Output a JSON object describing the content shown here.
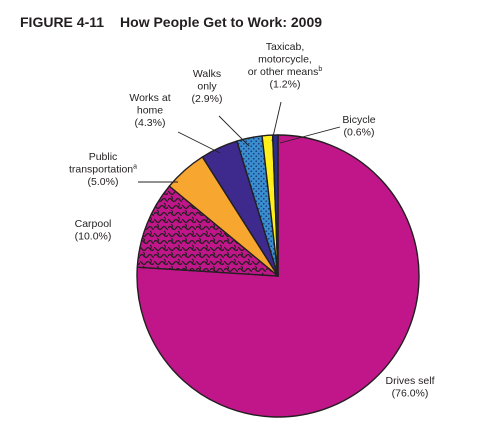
{
  "figure": {
    "number": "FIGURE 4-11",
    "title": "How People Get to Work: 2009"
  },
  "chart_data": {
    "type": "pie",
    "title": "How People Get to Work: 2009",
    "start": "12 o'clock",
    "direction": "clockwise",
    "slices": [
      {
        "name": "Drives self",
        "value": 76.0,
        "display": "(76.0%)",
        "color": "#c0168a",
        "pattern": "solid",
        "lines": [
          "Drives self"
        ],
        "sup": ""
      },
      {
        "name": "Carpool",
        "value": 10.0,
        "display": "(10.0%)",
        "color": "#c0168a",
        "pattern": "squiggle",
        "lines": [
          "Carpool"
        ],
        "sup": ""
      },
      {
        "name": "Public transportation",
        "value": 5.0,
        "display": "(5.0%)",
        "color": "#f7a630",
        "pattern": "solid",
        "lines": [
          "Public",
          "transportation"
        ],
        "sup": "a"
      },
      {
        "name": "Works at home",
        "value": 4.3,
        "display": "(4.3%)",
        "color": "#3d2a8c",
        "pattern": "solid",
        "lines": [
          "Works at",
          "home"
        ],
        "sup": ""
      },
      {
        "name": "Walks only",
        "value": 2.9,
        "display": "(2.9%)",
        "color": "#3a8fd1",
        "pattern": "dots",
        "lines": [
          "Walks",
          "only"
        ],
        "sup": ""
      },
      {
        "name": "Taxicab, motorcycle, or other means",
        "value": 1.2,
        "display": "(1.2%)",
        "color": "#ffef1a",
        "pattern": "solid",
        "lines": [
          "Taxicab,",
          "motorcycle,",
          "or other means"
        ],
        "sup": "b"
      },
      {
        "name": "Bicycle",
        "value": 0.6,
        "display": "(0.6%)",
        "color": "#2b2f86",
        "pattern": "solid",
        "lines": [
          "Bicycle"
        ],
        "sup": ""
      }
    ]
  }
}
